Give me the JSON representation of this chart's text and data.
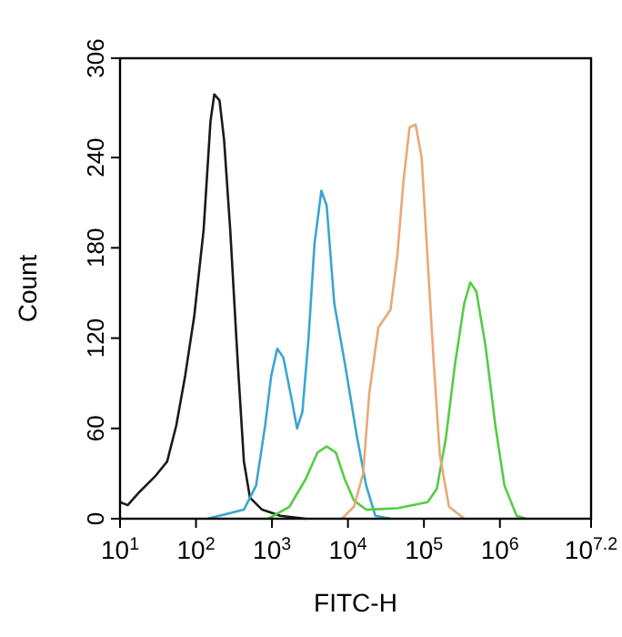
{
  "chart_data": {
    "type": "line",
    "xlabel": "FITC-H",
    "ylabel": "Count",
    "log": "x",
    "grid": false,
    "marker": "none",
    "line_style": "solid",
    "xlim": [
      10,
      15848931.92
    ],
    "xticks": [
      {
        "value": 10,
        "label": "10$^{1}$"
      },
      {
        "value": 100,
        "label": "10$^{2}$"
      },
      {
        "value": 1000,
        "label": "10$^{3}$"
      },
      {
        "value": 10000,
        "label": "10$^{4}$"
      },
      {
        "value": 100000,
        "label": "10$^{5}$"
      },
      {
        "value": 1000000,
        "label": "10$^{6}$"
      },
      {
        "value": 15848931.92,
        "label": "10$^{7.2}$"
      }
    ],
    "ylim": [
      0,
      306
    ],
    "yticks": [
      0,
      60,
      120,
      180,
      240,
      306
    ],
    "series": [
      {
        "color": "#1a1a1a",
        "x": [
          10,
          12.6,
          18.2,
          28.8,
          41.7,
          55,
          72,
          95,
          126,
          155,
          174,
          204,
          234,
          282,
          355,
          427,
          513,
          741,
          1288,
          2754
        ],
        "values": [
          11,
          9,
          18,
          28,
          38,
          62,
          95,
          135,
          192,
          264,
          282,
          278,
          252,
          192,
          103,
          38,
          14,
          6,
          2,
          0
        ]
      },
      {
        "color": "#3aa6d0",
        "x": [
          141,
          427,
          617,
          813,
          977,
          1175,
          1413,
          1820,
          2138,
          2512,
          3020,
          3631,
          4467,
          5248,
          6607,
          9120,
          13183,
          17378,
          22909,
          36308
        ],
        "values": [
          0,
          6,
          22,
          62,
          95,
          113,
          107,
          79,
          60,
          71,
          119,
          183,
          218,
          208,
          143,
          103,
          54,
          22,
          2,
          0
        ]
      },
      {
        "color": "#55cc44",
        "x": [
          891,
          1698,
          2754,
          3981,
          5248,
          6918,
          9120,
          12023,
          17378,
          44668,
          112202,
          147911,
          194984,
          257040,
          338844,
          407380,
          489779,
          645654,
          870964,
          1148154,
          1659587,
          2187762
        ],
        "values": [
          0,
          8,
          26,
          44,
          48,
          44,
          26,
          12,
          6,
          7,
          11,
          20,
          54,
          103,
          143,
          157,
          151,
          115,
          62,
          22,
          2,
          0
        ]
      },
      {
        "color": "#e8a878",
        "x": [
          8318,
          12023,
          15849,
          19055,
          25119,
          36308,
          44668,
          53703,
          64565,
          77625,
          93325,
          112202,
          134896,
          162181,
          213796,
          338844
        ],
        "values": [
          0,
          8,
          30,
          83,
          127,
          139,
          175,
          224,
          260,
          262,
          240,
          171,
          103,
          42,
          8,
          0
        ]
      }
    ]
  }
}
